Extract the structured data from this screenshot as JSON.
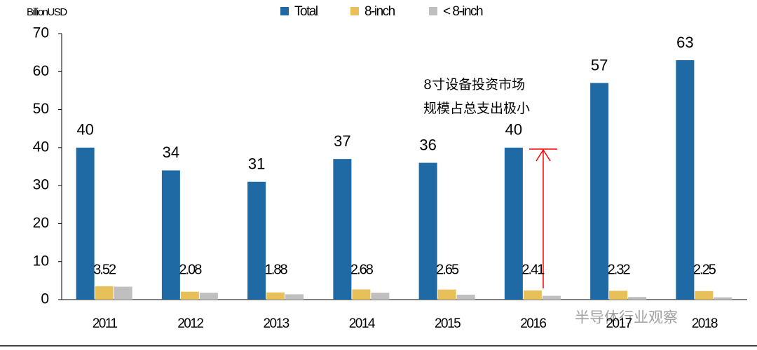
{
  "chart_data": {
    "type": "bar",
    "y_axis_label": "BillionUSD",
    "categories": [
      "2011",
      "2012",
      "2013",
      "2014",
      "2015",
      "2016",
      "2017",
      "2018"
    ],
    "series": [
      {
        "name": "Total",
        "color": "#1f6aa5",
        "labels": true,
        "values": [
          40,
          34,
          31,
          37,
          36,
          40,
          57,
          63
        ]
      },
      {
        "name": "8-inch",
        "color": "#e8c05a",
        "labels": true,
        "values": [
          3.52,
          2.08,
          1.88,
          2.68,
          2.65,
          2.41,
          2.32,
          2.25
        ]
      },
      {
        "name": "< 8-inch",
        "color": "#bfbfbf",
        "labels": false,
        "values": [
          3.4,
          1.8,
          1.4,
          1.8,
          1.3,
          1.0,
          0.7,
          0.6
        ]
      }
    ],
    "ylim": [
      0,
      70
    ],
    "yticks": [
      0,
      10,
      20,
      30,
      40,
      50,
      60,
      70
    ],
    "annotation_lines": [
      "8寸设备投资市场",
      "规模占总支出极小"
    ],
    "watermark": "半导体行业观察"
  }
}
